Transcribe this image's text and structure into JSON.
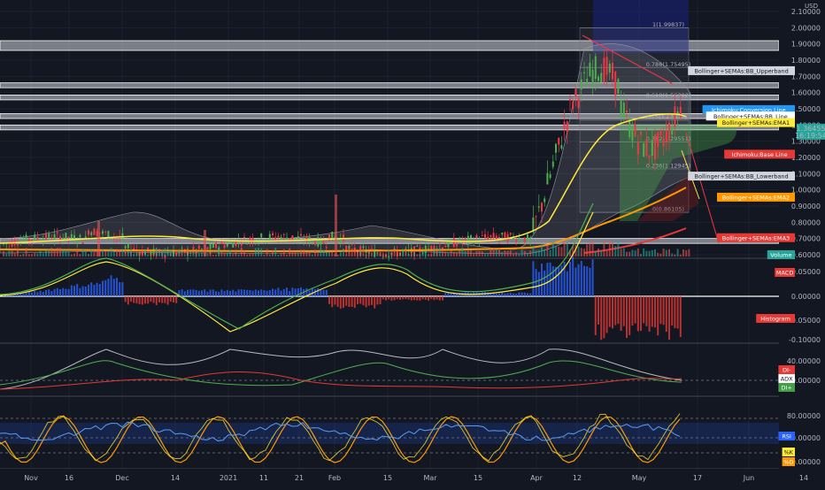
{
  "currency": "USD",
  "last_price": "1.36455",
  "countdown": "16:19:54",
  "x_ticks": [
    "Nov",
    "16",
    "Dec",
    "14",
    "2021",
    "11",
    "21",
    "Feb",
    "15",
    "Mar",
    "15",
    "Apr",
    "12",
    "May",
    "17",
    "Jun",
    "14"
  ],
  "price_axis": [
    "2.10000",
    "2.00000",
    "1.90000",
    "1.80000",
    "1.70000",
    "1.60000",
    "1.50000",
    "1.40000",
    "1.30000",
    "1.20000",
    "1.10000",
    "1.00000",
    "0.90000",
    "0.80000",
    "0.70000",
    "0.60000"
  ],
  "macd_axis": [
    "0.05000",
    "0.00000",
    "-0.05000",
    "-0.10000"
  ],
  "dmi_axis": [
    "40.00000",
    "20.00000"
  ],
  "rsi_axis": [
    "80.00000",
    "40.00000",
    "0.00000"
  ],
  "fib_levels": [
    {
      "label": "1(1.99837)",
      "value": 1.99837
    },
    {
      "label": "0.786(1.75495)",
      "value": 1.75495
    },
    {
      "label": "0.618(1.56392)",
      "value": 1.56392
    },
    {
      "label": "0.5(1.42971)",
      "value": 1.42971
    },
    {
      "label": "0.382(1.29551)",
      "value": 1.29551
    },
    {
      "label": "0.236(1.12945)",
      "value": 1.12945
    },
    {
      "label": "0(0.86105)",
      "value": 0.86105
    }
  ],
  "tags": [
    {
      "text": "Bollinger+SEMAs:BB_Upperband",
      "color": "#d1d4dc",
      "value": 1.735
    },
    {
      "text": "Ichimoku:Conversion Line",
      "color": "#2196f3",
      "value": 1.495
    },
    {
      "text": "Bollinger+SEMAs:BB_Line",
      "color": "#ffffff",
      "value": 1.455
    },
    {
      "text": "Bollinger+SEMAs:EMA1",
      "color": "#ffeb3b",
      "value": 1.415
    },
    {
      "text": "Ichimoku:Base Line",
      "color": "#e53935",
      "value": 1.22
    },
    {
      "text": "Bollinger+SEMAs:BB_Lowerband",
      "color": "#d1d4dc",
      "value": 1.085
    },
    {
      "text": "Bollinger+SEMAs:EMA2",
      "color": "#ff9800",
      "value": 0.955
    },
    {
      "text": "Bollinger+SEMAs:EMA3",
      "color": "#e53935",
      "value": 0.705
    }
  ],
  "panel_tags": {
    "volume": "Volume",
    "macd": "MACD",
    "histogram": "Histogram",
    "di_minus": "DI-",
    "adx": "ADX",
    "di_plus": "DI+",
    "rsi": "RSI",
    "k": "%K",
    "d": "%D"
  },
  "colors": {
    "up": "#26a69a",
    "down": "#ef5350",
    "green": "#4caf50",
    "red": "#f23645",
    "band": "#d1d4dc"
  },
  "chart_data": {
    "type": "line",
    "title": "",
    "ylim": [
      0.6,
      2.1
    ],
    "x": [
      "Nov",
      "Dec",
      "2021",
      "Feb",
      "Mar",
      "Apr",
      "May"
    ],
    "series": [
      {
        "name": "",
        "values": [
          0.66,
          0.72,
          0.68,
          0.71,
          0.69,
          0.74,
          1.45
        ]
      }
    ]
  }
}
